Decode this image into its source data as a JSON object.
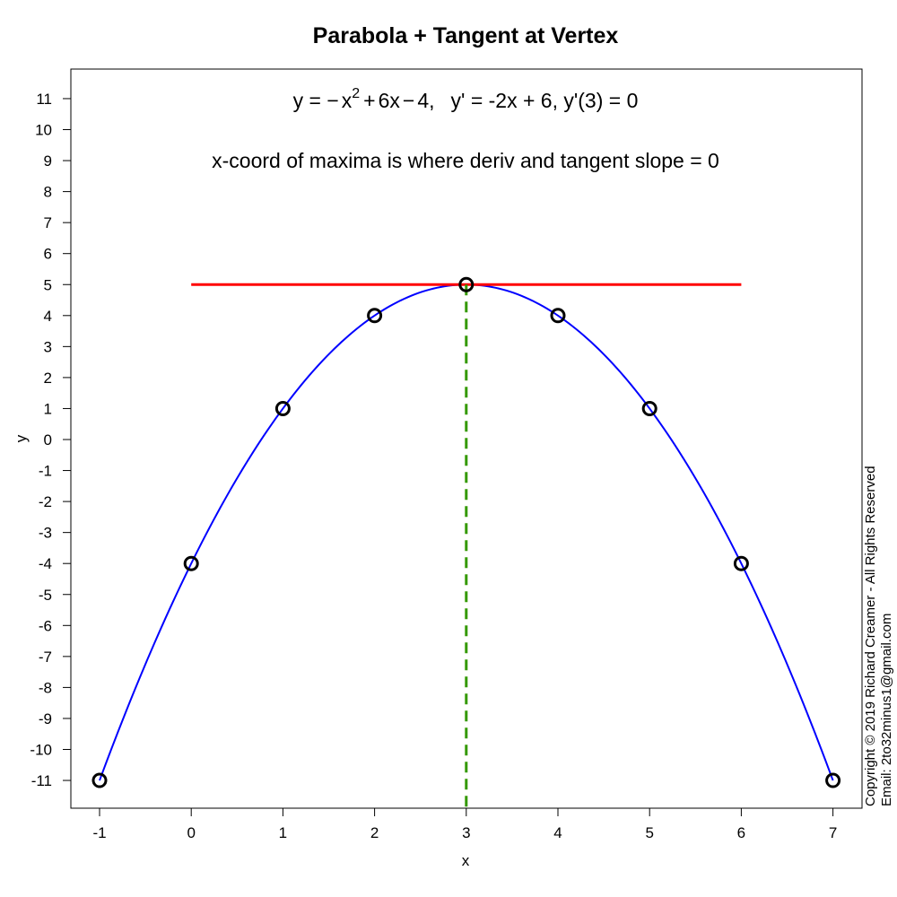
{
  "chart_data": {
    "type": "line",
    "title": "Parabola + Tangent at Vertex",
    "xlabel": "x",
    "ylabel": "y",
    "xlim": [
      -1,
      7
    ],
    "ylim": [
      -11,
      11
    ],
    "x_ticks": [
      -1,
      0,
      1,
      2,
      3,
      4,
      5,
      6,
      7
    ],
    "y_ticks": [
      -11,
      -10,
      -9,
      -8,
      -7,
      -6,
      -5,
      -4,
      -3,
      -2,
      -1,
      0,
      1,
      2,
      3,
      4,
      5,
      6,
      7,
      8,
      9,
      10,
      11
    ],
    "grid": false,
    "curve": {
      "equation": "y = -x^2 + 6x - 4",
      "color": "#0000ff",
      "x_range": [
        -1,
        7
      ]
    },
    "points": {
      "x": [
        -1,
        0,
        1,
        2,
        3,
        4,
        5,
        6,
        7
      ],
      "y": [
        -11,
        -4,
        1,
        4,
        5,
        4,
        1,
        -4,
        -11
      ],
      "color": "#000000"
    },
    "tangent_line": {
      "x": [
        0,
        6
      ],
      "y": [
        5,
        5
      ],
      "color": "#ff0000"
    },
    "vertex_line": {
      "x": [
        3,
        3
      ],
      "y": [
        5,
        -12
      ],
      "color": "#339900",
      "style": "dashed"
    },
    "annotations": {
      "equation": {
        "y_eq": "y = ",
        "minus1": "−",
        "x_sq": "x",
        "exp": "2",
        "plus": "+",
        "six_x": "6x",
        "minus2": "−",
        "four": "4,",
        "rest": "y' = -2x + 6,  y'(3) = 0"
      },
      "note": "x-coord of maxima is where deriv and tangent slope = 0"
    },
    "copyright": {
      "line1": "Copyright © 2019 Richard Creamer - All Rights Reserved",
      "line2": "Email: 2to32minus1@gmail.com"
    }
  }
}
